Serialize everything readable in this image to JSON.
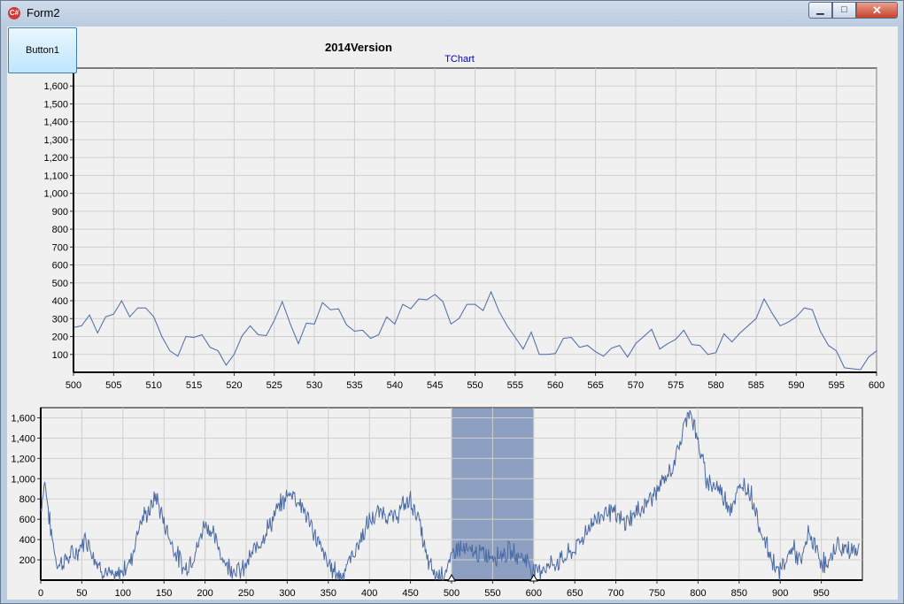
{
  "window": {
    "title": "Form2",
    "icon": "csharp-app-icon",
    "controls": {
      "minimize": "minimize-icon",
      "maximize": "maximize-icon",
      "close": "close-icon"
    }
  },
  "button1": {
    "label": "Button1"
  },
  "chart_data": [
    {
      "type": "line",
      "title": "2014Version",
      "subtitle": "TChart",
      "xlim": [
        500,
        600
      ],
      "ylim": [
        0,
        1700
      ],
      "x_ticks": [
        "500",
        "505",
        "510",
        "515",
        "520",
        "525",
        "530",
        "535",
        "540",
        "545",
        "550",
        "555",
        "560",
        "565",
        "570",
        "575",
        "580",
        "585",
        "590",
        "595",
        "600"
      ],
      "y_ticks": [
        "100",
        "200",
        "300",
        "400",
        "500",
        "600",
        "700",
        "800",
        "900",
        "1,000",
        "1,100",
        "1,200",
        "1,300",
        "1,400",
        "1,500",
        "1,600"
      ],
      "grid": true,
      "line_color": "#4a6aa5",
      "series": [
        {
          "x_start": 500,
          "values": [
            250,
            260,
            320,
            220,
            310,
            325,
            400,
            310,
            360,
            360,
            310,
            200,
            120,
            90,
            200,
            195,
            210,
            140,
            120,
            40,
            100,
            205,
            260,
            210,
            205,
            290,
            395,
            270,
            160,
            275,
            270,
            390,
            350,
            355,
            265,
            230,
            235,
            190,
            210,
            310,
            270,
            380,
            355,
            410,
            405,
            435,
            395,
            270,
            300,
            380,
            380,
            345,
            450,
            340,
            260,
            195,
            130,
            225,
            100,
            100,
            105,
            190,
            195,
            140,
            150,
            115,
            90,
            135,
            150,
            85,
            160,
            200,
            240,
            130,
            160,
            185,
            235,
            155,
            150,
            100,
            110,
            215,
            170,
            220,
            260,
            300,
            410,
            330,
            260,
            280,
            310,
            360,
            350,
            230,
            150,
            120,
            25,
            20,
            15,
            85,
            120
          ]
        }
      ]
    },
    {
      "type": "line",
      "xlim": [
        0,
        1000
      ],
      "ylim": [
        0,
        1700
      ],
      "x_ticks": [
        "0",
        "50",
        "100",
        "150",
        "200",
        "250",
        "300",
        "350",
        "400",
        "450",
        "500",
        "550",
        "600",
        "650",
        "700",
        "750",
        "800",
        "850",
        "900",
        "950"
      ],
      "y_ticks": [
        "200",
        "400",
        "600",
        "800",
        "1,000",
        "1,200",
        "1,400",
        "1,600"
      ],
      "grid": true,
      "line_color": "#4a6aa5",
      "highlight_range": [
        500,
        600
      ],
      "highlight_color": "#8ea0c2",
      "envelope": [
        [
          0,
          700
        ],
        [
          5,
          980
        ],
        [
          12,
          500
        ],
        [
          20,
          150
        ],
        [
          30,
          200
        ],
        [
          45,
          280
        ],
        [
          55,
          420
        ],
        [
          70,
          150
        ],
        [
          90,
          0
        ],
        [
          110,
          200
        ],
        [
          120,
          560
        ],
        [
          135,
          720
        ],
        [
          140,
          840
        ],
        [
          148,
          620
        ],
        [
          160,
          350
        ],
        [
          175,
          100
        ],
        [
          190,
          300
        ],
        [
          200,
          580
        ],
        [
          210,
          440
        ],
        [
          225,
          160
        ],
        [
          245,
          80
        ],
        [
          265,
          360
        ],
        [
          280,
          560
        ],
        [
          290,
          720
        ],
        [
          305,
          880
        ],
        [
          320,
          700
        ],
        [
          335,
          420
        ],
        [
          350,
          150
        ],
        [
          365,
          40
        ],
        [
          380,
          250
        ],
        [
          400,
          580
        ],
        [
          415,
          680
        ],
        [
          430,
          600
        ],
        [
          440,
          720
        ],
        [
          450,
          790
        ],
        [
          460,
          600
        ],
        [
          470,
          200
        ],
        [
          480,
          50
        ],
        [
          495,
          100
        ],
        [
          505,
          330
        ],
        [
          520,
          280
        ],
        [
          535,
          260
        ],
        [
          550,
          240
        ],
        [
          570,
          280
        ],
        [
          590,
          220
        ],
        [
          600,
          80
        ],
        [
          610,
          120
        ],
        [
          630,
          180
        ],
        [
          650,
          300
        ],
        [
          670,
          560
        ],
        [
          690,
          700
        ],
        [
          710,
          560
        ],
        [
          730,
          700
        ],
        [
          750,
          880
        ],
        [
          765,
          1050
        ],
        [
          775,
          1250
        ],
        [
          785,
          1580
        ],
        [
          790,
          1700
        ],
        [
          800,
          1350
        ],
        [
          810,
          1000
        ],
        [
          825,
          900
        ],
        [
          840,
          720
        ],
        [
          855,
          950
        ],
        [
          865,
          850
        ],
        [
          875,
          520
        ],
        [
          890,
          200
        ],
        [
          900,
          80
        ],
        [
          915,
          330
        ],
        [
          925,
          150
        ],
        [
          935,
          480
        ],
        [
          945,
          260
        ],
        [
          958,
          120
        ],
        [
          968,
          360
        ],
        [
          975,
          300
        ]
      ]
    }
  ]
}
